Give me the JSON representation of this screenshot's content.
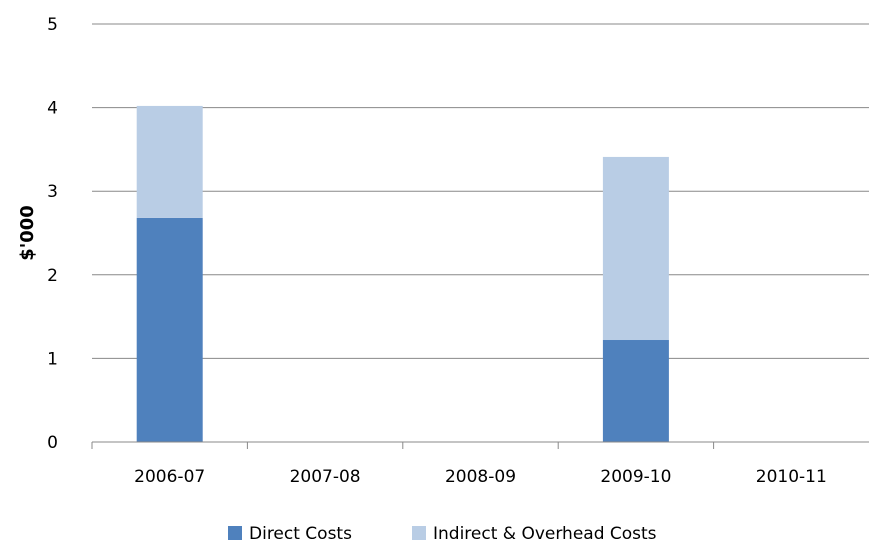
{
  "chart_data": {
    "type": "bar",
    "stacked": true,
    "categories": [
      "2006-07",
      "2007-08",
      "2008-09",
      "2009-10",
      "2010-11"
    ],
    "series": [
      {
        "name": "Direct Costs",
        "color": "#4F81BD",
        "values": [
          2.68,
          0,
          0,
          1.22,
          0
        ]
      },
      {
        "name": "Indirect & Overhead Costs",
        "color": "#B9CDE5",
        "values": [
          1.34,
          0,
          0,
          2.19,
          0
        ]
      }
    ],
    "title": "",
    "xlabel": "",
    "ylabel": "$'000",
    "ylim": [
      0,
      5
    ],
    "yticks": [
      0,
      1,
      2,
      3,
      4,
      5
    ],
    "grid": true,
    "legend": "bottom",
    "colors": {
      "grid": "#888888",
      "axis": "#888888"
    }
  }
}
